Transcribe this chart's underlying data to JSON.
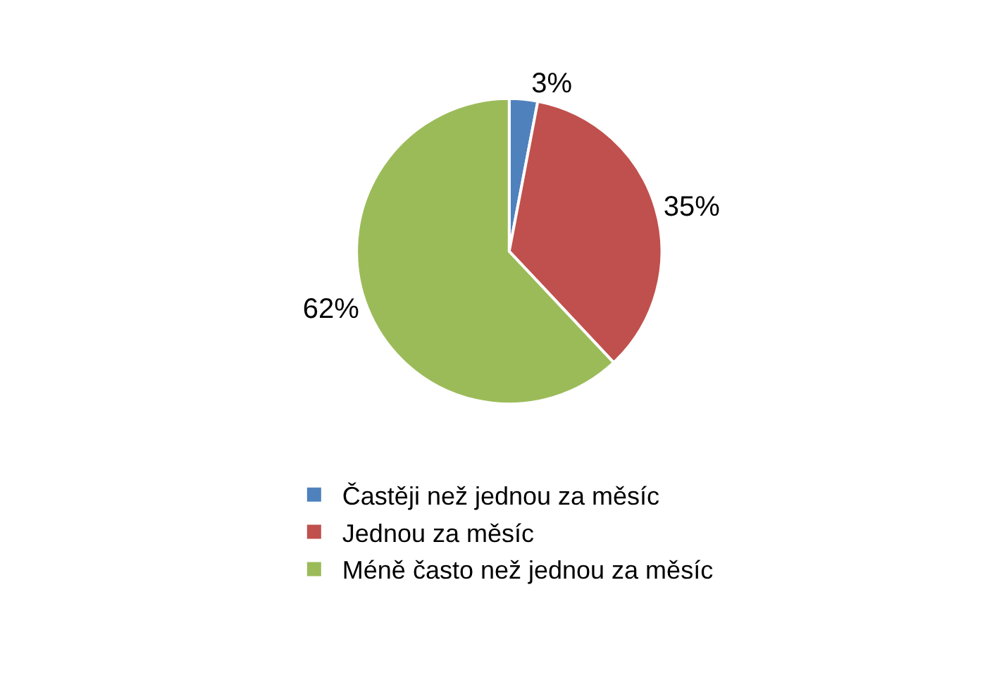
{
  "chart_data": {
    "type": "pie",
    "categories": [
      "Častěji než jednou za měsíc",
      "Jednou za měsíc",
      "Méně často než jednou za měsíc"
    ],
    "values": [
      3,
      35,
      62
    ],
    "value_labels": [
      "3%",
      "35%",
      "62%"
    ],
    "colors": [
      "#4f81bd",
      "#c0504d",
      "#9bbb59"
    ],
    "legend": "bottom"
  }
}
